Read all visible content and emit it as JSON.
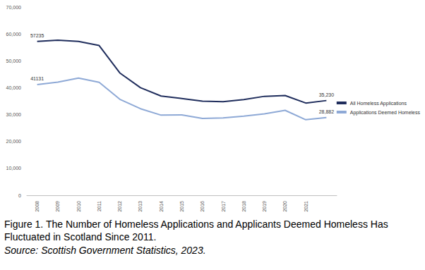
{
  "chart_data": {
    "type": "line",
    "title": "Figure 1. The Number of Homeless Applications and Applicants Deemed Homeless Has Fluctuated in Scotland Since 2011.",
    "subtitle": "Source: Scottish Government Statistics, 2023.",
    "categories": [
      "2008",
      "2009",
      "2010",
      "2011",
      "2012",
      "2013",
      "2014",
      "2015",
      "2016",
      "2017",
      "2018",
      "2019",
      "2020",
      "2021",
      null
    ],
    "series": [
      {
        "name": "All Homeless Applications",
        "color": "#1f2d5c",
        "values": [
          57235,
          57700,
          57200,
          55700,
          45500,
          40000,
          36900,
          36000,
          35000,
          34800,
          35600,
          36800,
          37100,
          34300,
          35230
        ],
        "value_labels": [
          "57235",
          null,
          null,
          null,
          null,
          null,
          null,
          null,
          null,
          null,
          null,
          null,
          null,
          null,
          "35,230"
        ]
      },
      {
        "name": "Applications Deemed Homeless",
        "color": "#8ea9d6",
        "values": [
          41131,
          42100,
          43600,
          42000,
          35700,
          32200,
          29800,
          29900,
          28600,
          28800,
          29400,
          30300,
          31600,
          28100,
          28882
        ],
        "value_labels": [
          "41131",
          null,
          null,
          null,
          null,
          null,
          null,
          null,
          null,
          null,
          null,
          null,
          null,
          null,
          "28,882"
        ]
      }
    ],
    "ylim": [
      0,
      70000
    ],
    "yticks": [
      0,
      10000,
      20000,
      30000,
      40000,
      50000,
      60000,
      70000
    ],
    "grid": false,
    "legend": "right"
  }
}
